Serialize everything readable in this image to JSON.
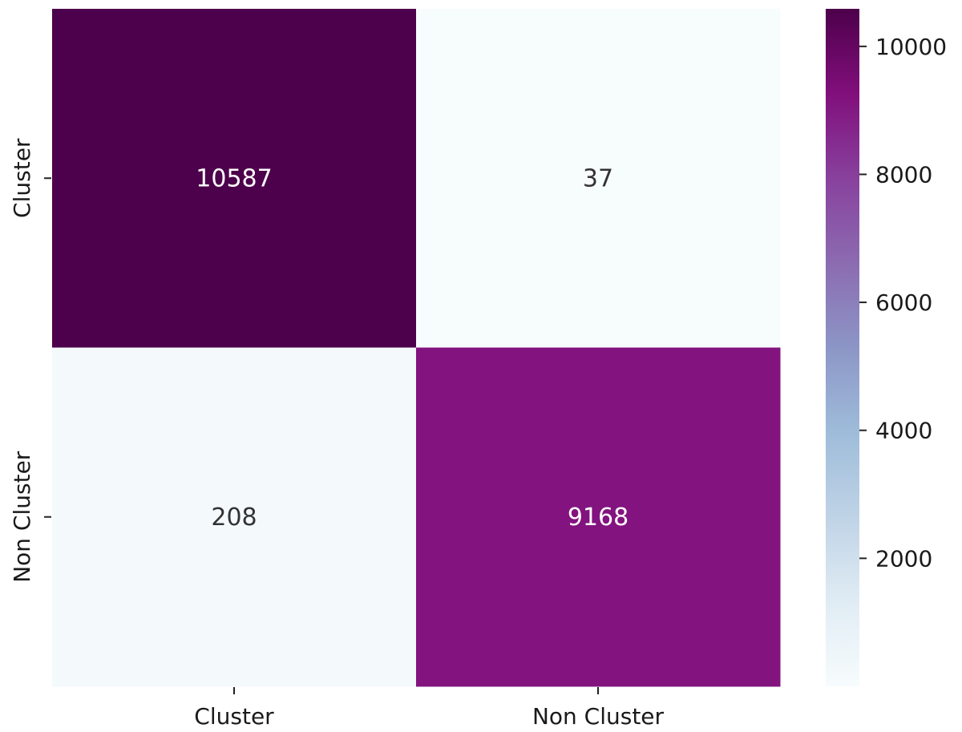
{
  "chart_data": {
    "type": "heatmap",
    "title": "",
    "xlabel": "",
    "ylabel": "",
    "x_categories": [
      "Cluster",
      "Non Cluster"
    ],
    "y_categories": [
      "Cluster",
      "Non Cluster"
    ],
    "values": [
      [
        10587,
        37
      ],
      [
        208,
        9168
      ]
    ],
    "value_range": [
      37,
      10587
    ],
    "colormap": "BuPu",
    "colors": {
      "low": "#f7fcfd",
      "high": "#4d004b",
      "text_dark_bg": "#ffffff",
      "text_light_bg": "#333333"
    },
    "colorbar": {
      "ticks": [
        2000,
        4000,
        6000,
        8000,
        10000
      ],
      "tick_labels": [
        "2000",
        "4000",
        "6000",
        "8000",
        "10000"
      ],
      "placement": "right"
    }
  }
}
